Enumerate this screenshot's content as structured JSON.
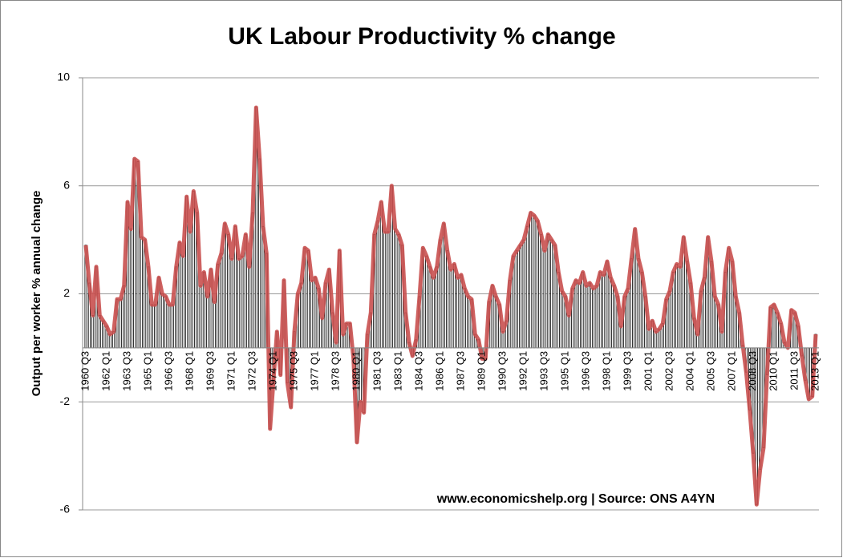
{
  "chart_data": {
    "type": "bar",
    "title": "UK Labour Productivity % change",
    "y_label": "Output per worker % annual change",
    "annotation": "www.economicshelp.org | Source: ONS A4YN",
    "ylim": [
      -6,
      10
    ],
    "yticks": [
      -6,
      -2,
      2,
      6,
      10
    ],
    "grid": true,
    "color": "#000000",
    "line_color": "#c9504f",
    "categories": [
      "1960 Q3",
      null,
      null,
      null,
      null,
      null,
      "1962 Q1",
      null,
      null,
      null,
      null,
      null,
      "1963 Q3",
      null,
      null,
      null,
      null,
      null,
      "1965 Q1",
      null,
      null,
      null,
      null,
      null,
      "1966 Q3",
      null,
      null,
      null,
      null,
      null,
      "1968 Q1",
      null,
      null,
      null,
      null,
      null,
      "1969 Q3",
      null,
      null,
      null,
      null,
      null,
      "1971 Q1",
      null,
      null,
      null,
      null,
      null,
      "1972 Q3",
      null,
      null,
      null,
      null,
      null,
      "1974 Q1",
      null,
      null,
      null,
      null,
      null,
      "1975 Q3",
      null,
      null,
      null,
      null,
      null,
      "1977 Q1",
      null,
      null,
      null,
      null,
      null,
      "1978 Q3",
      null,
      null,
      null,
      null,
      null,
      "1980 Q1",
      null,
      null,
      null,
      null,
      null,
      "1981 Q3",
      null,
      null,
      null,
      null,
      null,
      "1983 Q1",
      null,
      null,
      null,
      null,
      null,
      "1984 Q3",
      null,
      null,
      null,
      null,
      null,
      "1986 Q1",
      null,
      null,
      null,
      null,
      null,
      "1987 Q3",
      null,
      null,
      null,
      null,
      null,
      "1989 Q1",
      null,
      null,
      null,
      null,
      null,
      "1990 Q3",
      null,
      null,
      null,
      null,
      null,
      "1992 Q1",
      null,
      null,
      null,
      null,
      null,
      "1993 Q3",
      null,
      null,
      null,
      null,
      null,
      "1995 Q1",
      null,
      null,
      null,
      null,
      null,
      "1996 Q3",
      null,
      null,
      null,
      null,
      null,
      "1998 Q1",
      null,
      null,
      null,
      null,
      null,
      "1999 Q3",
      null,
      null,
      null,
      null,
      null,
      "2001 Q1",
      null,
      null,
      null,
      null,
      null,
      "2002 Q3",
      null,
      null,
      null,
      null,
      null,
      "2004 Q1",
      null,
      null,
      null,
      null,
      null,
      "2005 Q3",
      null,
      null,
      null,
      null,
      null,
      "2007 Q1",
      null,
      null,
      null,
      null,
      null,
      "2008 Q3",
      null,
      null,
      null,
      null,
      null,
      "2010 Q1",
      null,
      null,
      null,
      null,
      null,
      "2011 Q3",
      null,
      null,
      null,
      null,
      null,
      "2013 Q1"
    ],
    "values": [
      3.8,
      2.4,
      1.2,
      3.0,
      1.2,
      1.0,
      0.8,
      0.5,
      0.6,
      1.8,
      1.8,
      2.3,
      5.4,
      4.4,
      7.0,
      6.9,
      4.1,
      4.0,
      3.0,
      1.6,
      1.6,
      2.6,
      2.0,
      1.9,
      1.6,
      1.6,
      3.0,
      3.9,
      3.4,
      5.6,
      4.3,
      5.8,
      5.0,
      2.3,
      2.8,
      1.9,
      2.9,
      1.7,
      3.1,
      3.5,
      4.6,
      4.2,
      3.3,
      4.5,
      3.3,
      3.4,
      4.2,
      3.0,
      5.0,
      8.9,
      7.0,
      4.5,
      3.5,
      -3.0,
      -1.2,
      0.6,
      -1.0,
      2.5,
      -1.3,
      -2.2,
      0.6,
      2.0,
      2.4,
      3.7,
      3.6,
      2.5,
      2.6,
      2.2,
      1.1,
      2.4,
      2.9,
      1.3,
      0.2,
      3.6,
      0.5,
      0.9,
      0.9,
      -0.4,
      -3.5,
      -2.0,
      -2.4,
      0.5,
      1.3,
      4.2,
      4.7,
      5.4,
      4.3,
      4.3,
      6.0,
      4.4,
      4.2,
      3.8,
      1.3,
      0.2,
      -0.3,
      0.3,
      1.9,
      3.7,
      3.4,
      3.0,
      2.6,
      3.0,
      4.0,
      4.6,
      3.6,
      2.9,
      3.1,
      2.6,
      2.7,
      2.2,
      1.9,
      1.8,
      0.5,
      0.3,
      -0.4,
      -0.4,
      1.7,
      2.3,
      1.9,
      1.6,
      0.6,
      1.0,
      2.5,
      3.4,
      3.6,
      3.8,
      4.0,
      4.5,
      5.0,
      4.9,
      4.7,
      4.2,
      3.6,
      4.2,
      4.0,
      3.8,
      2.8,
      2.1,
      1.9,
      1.2,
      2.2,
      2.5,
      2.4,
      2.8,
      2.3,
      2.4,
      2.2,
      2.3,
      2.8,
      2.7,
      3.2,
      2.6,
      2.3,
      1.9,
      0.8,
      1.9,
      2.2,
      3.3,
      4.4,
      3.3,
      2.8,
      1.9,
      0.7,
      1.0,
      0.6,
      0.7,
      0.9,
      1.8,
      2.1,
      2.8,
      3.1,
      3.0,
      4.1,
      3.2,
      2.4,
      1.1,
      0.5,
      2.1,
      2.6,
      4.1,
      3.2,
      1.9,
      1.6,
      0.6,
      2.8,
      3.7,
      3.2,
      1.9,
      1.3,
      0.1,
      -0.9,
      -2.3,
      -3.9,
      -5.8,
      -4.5,
      -3.7,
      -1.0,
      1.5,
      1.6,
      1.3,
      0.9,
      0.2,
      0.0,
      1.4,
      1.3,
      0.8,
      -0.3,
      -1.2,
      -1.9,
      -1.8,
      0.5
    ]
  }
}
